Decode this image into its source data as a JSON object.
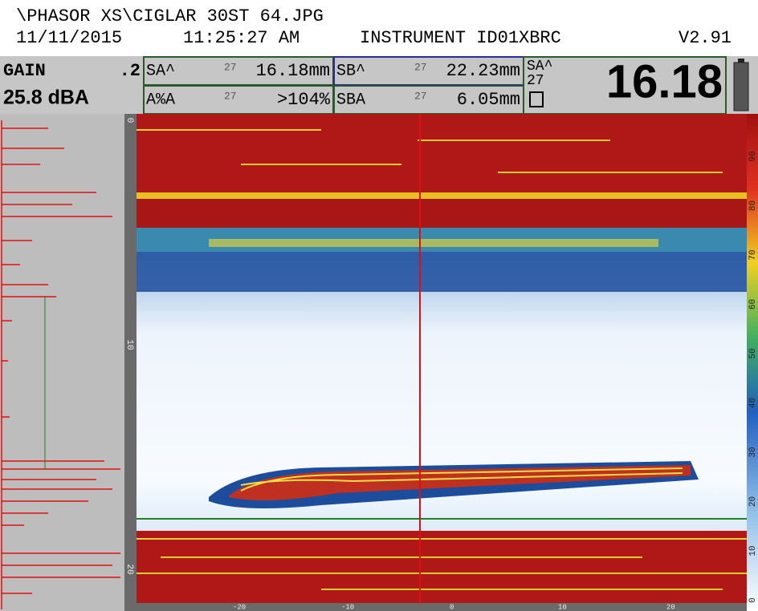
{
  "header": {
    "file": "\\PHASOR XS\\CIGLAR 30ST 64.JPG",
    "date": "11/11/2015",
    "time": "11:25:27 AM",
    "instrument": "INSTRUMENT ID01XBRC",
    "version": "V2.91"
  },
  "readings": {
    "gain_label": "GAIN",
    "gain_step": ".2",
    "gain_value": "25.8 dBA",
    "cells": [
      {
        "label": "SA^",
        "gate": "27",
        "value": "16.18mm"
      },
      {
        "label": "SB^",
        "gate": "27",
        "value": "22.23mm"
      },
      {
        "label": "A%A",
        "gate": "27",
        "value": ">104%"
      },
      {
        "label": "SBA",
        "gate": "27",
        "value": "6.05mm"
      }
    ],
    "main_label": "SA^",
    "main_gate": "27",
    "main_value": "16.18"
  },
  "color_scale": {
    "ticks": [
      "90",
      "80",
      "70",
      "60",
      "50",
      "40",
      "30",
      "20",
      "10",
      "0"
    ]
  },
  "x_scale": {
    "ticks": [
      "-20",
      "-10",
      "0",
      "10",
      "20"
    ]
  },
  "depth_scale": {
    "ticks": [
      "0",
      "10",
      "20"
    ]
  }
}
